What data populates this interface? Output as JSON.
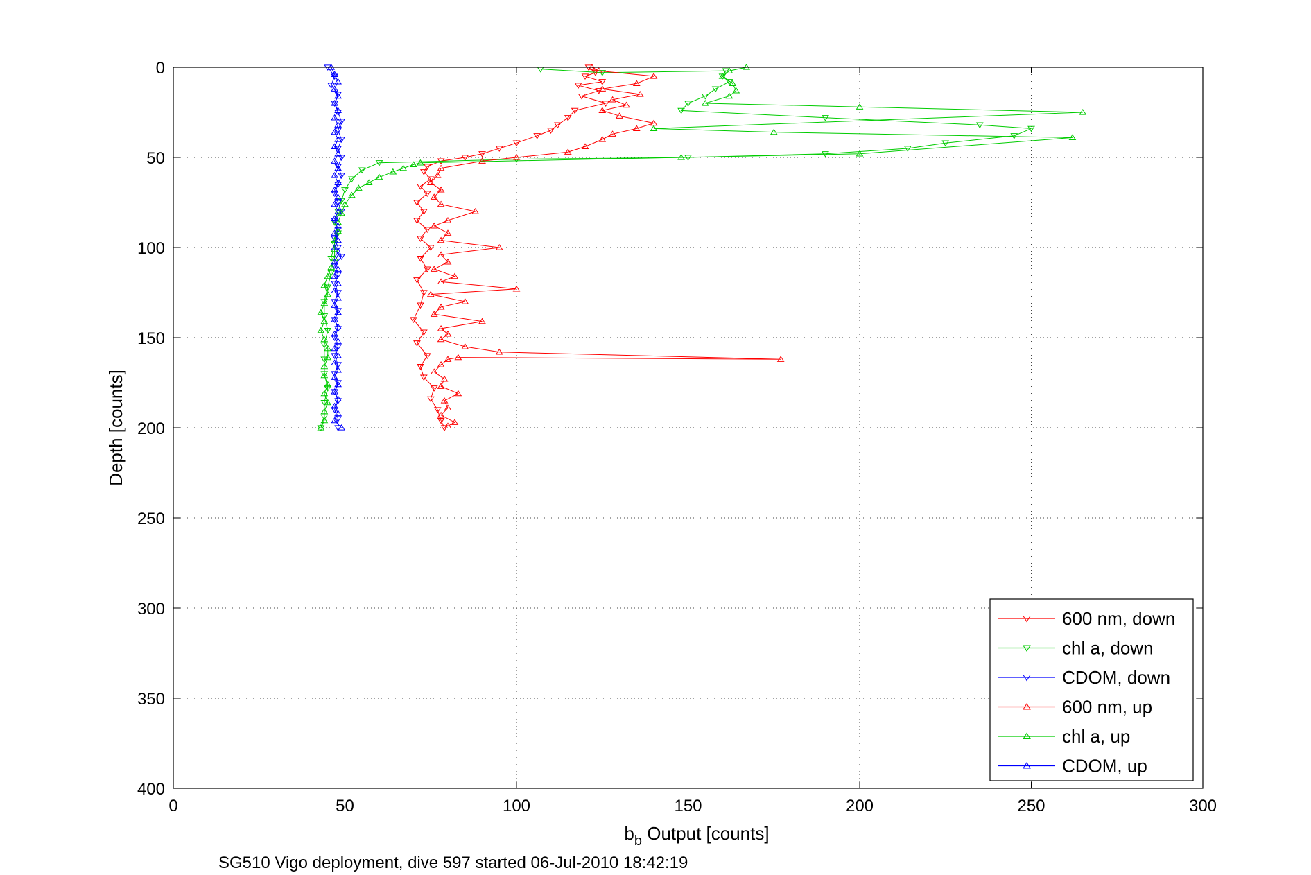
{
  "chart_data": {
    "type": "line",
    "xlabel_base": "b",
    "xlabel_sub": "b",
    "xlabel_rest": " Output [counts]",
    "ylabel": "Depth [counts]",
    "caption": "SG510 Vigo deployment, dive 597 started 06-Jul-2010 18:42:19",
    "xlim": [
      0,
      300
    ],
    "ylim": [
      0,
      400
    ],
    "y_reversed": true,
    "grid": true,
    "x_ticks": [
      "0",
      "50",
      "100",
      "150",
      "200",
      "250",
      "300"
    ],
    "y_ticks": [
      "0",
      "50",
      "100",
      "150",
      "200",
      "250",
      "300",
      "350",
      "400"
    ],
    "legend_position": "bottom-right",
    "series": [
      {
        "name": "600 nm, down",
        "color": "#ff0000",
        "marker": "triangle-down",
        "points": [
          [
            121,
            0
          ],
          [
            123,
            3
          ],
          [
            120,
            5
          ],
          [
            125,
            8
          ],
          [
            118,
            10
          ],
          [
            124,
            13
          ],
          [
            119,
            16
          ],
          [
            126,
            20
          ],
          [
            117,
            24
          ],
          [
            115,
            28
          ],
          [
            112,
            32
          ],
          [
            110,
            35
          ],
          [
            106,
            38
          ],
          [
            100,
            42
          ],
          [
            95,
            45
          ],
          [
            90,
            48
          ],
          [
            85,
            50
          ],
          [
            78,
            52
          ],
          [
            74,
            55
          ],
          [
            73,
            58
          ],
          [
            75,
            62
          ],
          [
            72,
            66
          ],
          [
            74,
            70
          ],
          [
            71,
            75
          ],
          [
            73,
            80
          ],
          [
            71,
            85
          ],
          [
            74,
            90
          ],
          [
            72,
            95
          ],
          [
            75,
            100
          ],
          [
            72,
            106
          ],
          [
            74,
            112
          ],
          [
            71,
            118
          ],
          [
            73,
            125
          ],
          [
            72,
            132
          ],
          [
            70,
            140
          ],
          [
            73,
            147
          ],
          [
            71,
            153
          ],
          [
            74,
            160
          ],
          [
            72,
            166
          ],
          [
            73,
            172
          ],
          [
            76,
            178
          ],
          [
            75,
            184
          ],
          [
            77,
            190
          ],
          [
            78,
            196
          ],
          [
            79,
            200
          ]
        ]
      },
      {
        "name": "chl a, down",
        "color": "#00cc00",
        "marker": "triangle-down",
        "points": [
          [
            107,
            1
          ],
          [
            125,
            3
          ],
          [
            161,
            2
          ],
          [
            160,
            5
          ],
          [
            162,
            8
          ],
          [
            158,
            12
          ],
          [
            155,
            16
          ],
          [
            150,
            20
          ],
          [
            148,
            24
          ],
          [
            190,
            28
          ],
          [
            235,
            32
          ],
          [
            250,
            34
          ],
          [
            245,
            38
          ],
          [
            225,
            42
          ],
          [
            214,
            45
          ],
          [
            190,
            48
          ],
          [
            150,
            50
          ],
          [
            100,
            51
          ],
          [
            60,
            53
          ],
          [
            55,
            57
          ],
          [
            52,
            62
          ],
          [
            50,
            68
          ],
          [
            49,
            74
          ],
          [
            48,
            80
          ],
          [
            47,
            86
          ],
          [
            48,
            92
          ],
          [
            47,
            98
          ],
          [
            46,
            106
          ],
          [
            46,
            114
          ],
          [
            45,
            122
          ],
          [
            44,
            130
          ],
          [
            44,
            138
          ],
          [
            45,
            146
          ],
          [
            44,
            154
          ],
          [
            44,
            162
          ],
          [
            44,
            170
          ],
          [
            45,
            178
          ],
          [
            44,
            186
          ],
          [
            44,
            194
          ],
          [
            43,
            200
          ]
        ]
      },
      {
        "name": "CDOM, down",
        "color": "#0000ff",
        "marker": "triangle-down",
        "points": [
          [
            45,
            0
          ],
          [
            47,
            5
          ],
          [
            46,
            10
          ],
          [
            48,
            15
          ],
          [
            47,
            20
          ],
          [
            48,
            25
          ],
          [
            49,
            30
          ],
          [
            48,
            35
          ],
          [
            49,
            40
          ],
          [
            48,
            45
          ],
          [
            49,
            50
          ],
          [
            48,
            55
          ],
          [
            49,
            60
          ],
          [
            48,
            65
          ],
          [
            47,
            70
          ],
          [
            48,
            75
          ],
          [
            49,
            80
          ],
          [
            47,
            85
          ],
          [
            48,
            90
          ],
          [
            47,
            95
          ],
          [
            48,
            100
          ],
          [
            49,
            105
          ],
          [
            47,
            110
          ],
          [
            48,
            115
          ],
          [
            47,
            120
          ],
          [
            48,
            125
          ],
          [
            47,
            130
          ],
          [
            48,
            135
          ],
          [
            47,
            140
          ],
          [
            48,
            145
          ],
          [
            47,
            150
          ],
          [
            48,
            155
          ],
          [
            47,
            160
          ],
          [
            48,
            165
          ],
          [
            47,
            170
          ],
          [
            48,
            175
          ],
          [
            47,
            180
          ],
          [
            48,
            185
          ],
          [
            47,
            190
          ],
          [
            48,
            195
          ],
          [
            48,
            200
          ]
        ]
      },
      {
        "name": "600 nm, up",
        "color": "#ff0000",
        "marker": "triangle-up",
        "points": [
          [
            80,
            199
          ],
          [
            82,
            197
          ],
          [
            78,
            193
          ],
          [
            80,
            189
          ],
          [
            79,
            185
          ],
          [
            83,
            181
          ],
          [
            78,
            177
          ],
          [
            79,
            173
          ],
          [
            76,
            169
          ],
          [
            78,
            165
          ],
          [
            80,
            162
          ],
          [
            83,
            161
          ],
          [
            177,
            162
          ],
          [
            95,
            158
          ],
          [
            85,
            155
          ],
          [
            78,
            151
          ],
          [
            80,
            148
          ],
          [
            78,
            145
          ],
          [
            90,
            141
          ],
          [
            76,
            137
          ],
          [
            78,
            133
          ],
          [
            85,
            130
          ],
          [
            75,
            126
          ],
          [
            100,
            123
          ],
          [
            78,
            119
          ],
          [
            82,
            116
          ],
          [
            76,
            112
          ],
          [
            80,
            108
          ],
          [
            78,
            104
          ],
          [
            95,
            100
          ],
          [
            78,
            96
          ],
          [
            80,
            92
          ],
          [
            76,
            88
          ],
          [
            80,
            85
          ],
          [
            88,
            80
          ],
          [
            78,
            76
          ],
          [
            76,
            72
          ],
          [
            78,
            68
          ],
          [
            75,
            64
          ],
          [
            77,
            60
          ],
          [
            78,
            56
          ],
          [
            90,
            52
          ],
          [
            100,
            50
          ],
          [
            115,
            47
          ],
          [
            120,
            44
          ],
          [
            125,
            40
          ],
          [
            128,
            37
          ],
          [
            135,
            34
          ],
          [
            140,
            31
          ],
          [
            130,
            27
          ],
          [
            125,
            24
          ],
          [
            132,
            21
          ],
          [
            128,
            18
          ],
          [
            136,
            15
          ],
          [
            125,
            12
          ],
          [
            135,
            9
          ],
          [
            140,
            5
          ],
          [
            124,
            2
          ],
          [
            122,
            0
          ]
        ]
      },
      {
        "name": "chl a, up",
        "color": "#00cc00",
        "marker": "triangle-up",
        "points": [
          [
            43,
            200
          ],
          [
            44,
            196
          ],
          [
            44,
            191
          ],
          [
            45,
            186
          ],
          [
            44,
            181
          ],
          [
            45,
            176
          ],
          [
            44,
            171
          ],
          [
            44,
            166
          ],
          [
            45,
            161
          ],
          [
            45,
            156
          ],
          [
            44,
            151
          ],
          [
            43,
            146
          ],
          [
            44,
            141
          ],
          [
            43,
            136
          ],
          [
            44,
            131
          ],
          [
            45,
            126
          ],
          [
            44,
            121
          ],
          [
            45,
            116
          ],
          [
            46,
            111
          ],
          [
            47,
            106
          ],
          [
            47,
            101
          ],
          [
            47,
            96
          ],
          [
            48,
            91
          ],
          [
            48,
            86
          ],
          [
            49,
            81
          ],
          [
            50,
            76
          ],
          [
            52,
            71
          ],
          [
            54,
            67
          ],
          [
            57,
            64
          ],
          [
            60,
            61
          ],
          [
            64,
            58
          ],
          [
            67,
            56
          ],
          [
            70,
            54
          ],
          [
            72,
            53
          ],
          [
            148,
            50
          ],
          [
            200,
            48
          ],
          [
            262,
            39
          ],
          [
            175,
            36
          ],
          [
            140,
            34
          ],
          [
            265,
            25
          ],
          [
            200,
            22
          ],
          [
            155,
            20
          ],
          [
            162,
            16
          ],
          [
            164,
            13
          ],
          [
            163,
            9
          ],
          [
            160,
            5
          ],
          [
            162,
            2
          ],
          [
            167,
            0
          ]
        ]
      },
      {
        "name": "CDOM, up",
        "color": "#0000ff",
        "marker": "triangle-up",
        "points": [
          [
            49,
            200
          ],
          [
            47,
            196
          ],
          [
            48,
            192
          ],
          [
            47,
            188
          ],
          [
            48,
            184
          ],
          [
            47,
            180
          ],
          [
            48,
            176
          ],
          [
            47,
            172
          ],
          [
            48,
            168
          ],
          [
            47,
            164
          ],
          [
            48,
            160
          ],
          [
            47,
            156
          ],
          [
            48,
            152
          ],
          [
            47,
            148
          ],
          [
            48,
            144
          ],
          [
            47,
            140
          ],
          [
            48,
            136
          ],
          [
            47,
            132
          ],
          [
            48,
            128
          ],
          [
            47,
            124
          ],
          [
            48,
            120
          ],
          [
            47,
            116
          ],
          [
            48,
            112
          ],
          [
            47,
            108
          ],
          [
            48,
            104
          ],
          [
            47,
            100
          ],
          [
            48,
            96
          ],
          [
            47,
            92
          ],
          [
            48,
            88
          ],
          [
            47,
            84
          ],
          [
            48,
            80
          ],
          [
            47,
            76
          ],
          [
            48,
            72
          ],
          [
            47,
            68
          ],
          [
            48,
            64
          ],
          [
            47,
            60
          ],
          [
            48,
            56
          ],
          [
            47,
            52
          ],
          [
            48,
            48
          ],
          [
            47,
            44
          ],
          [
            48,
            40
          ],
          [
            47,
            36
          ],
          [
            48,
            32
          ],
          [
            47,
            28
          ],
          [
            48,
            24
          ],
          [
            47,
            20
          ],
          [
            48,
            16
          ],
          [
            47,
            12
          ],
          [
            48,
            8
          ],
          [
            47,
            4
          ],
          [
            46,
            0
          ]
        ]
      }
    ]
  }
}
